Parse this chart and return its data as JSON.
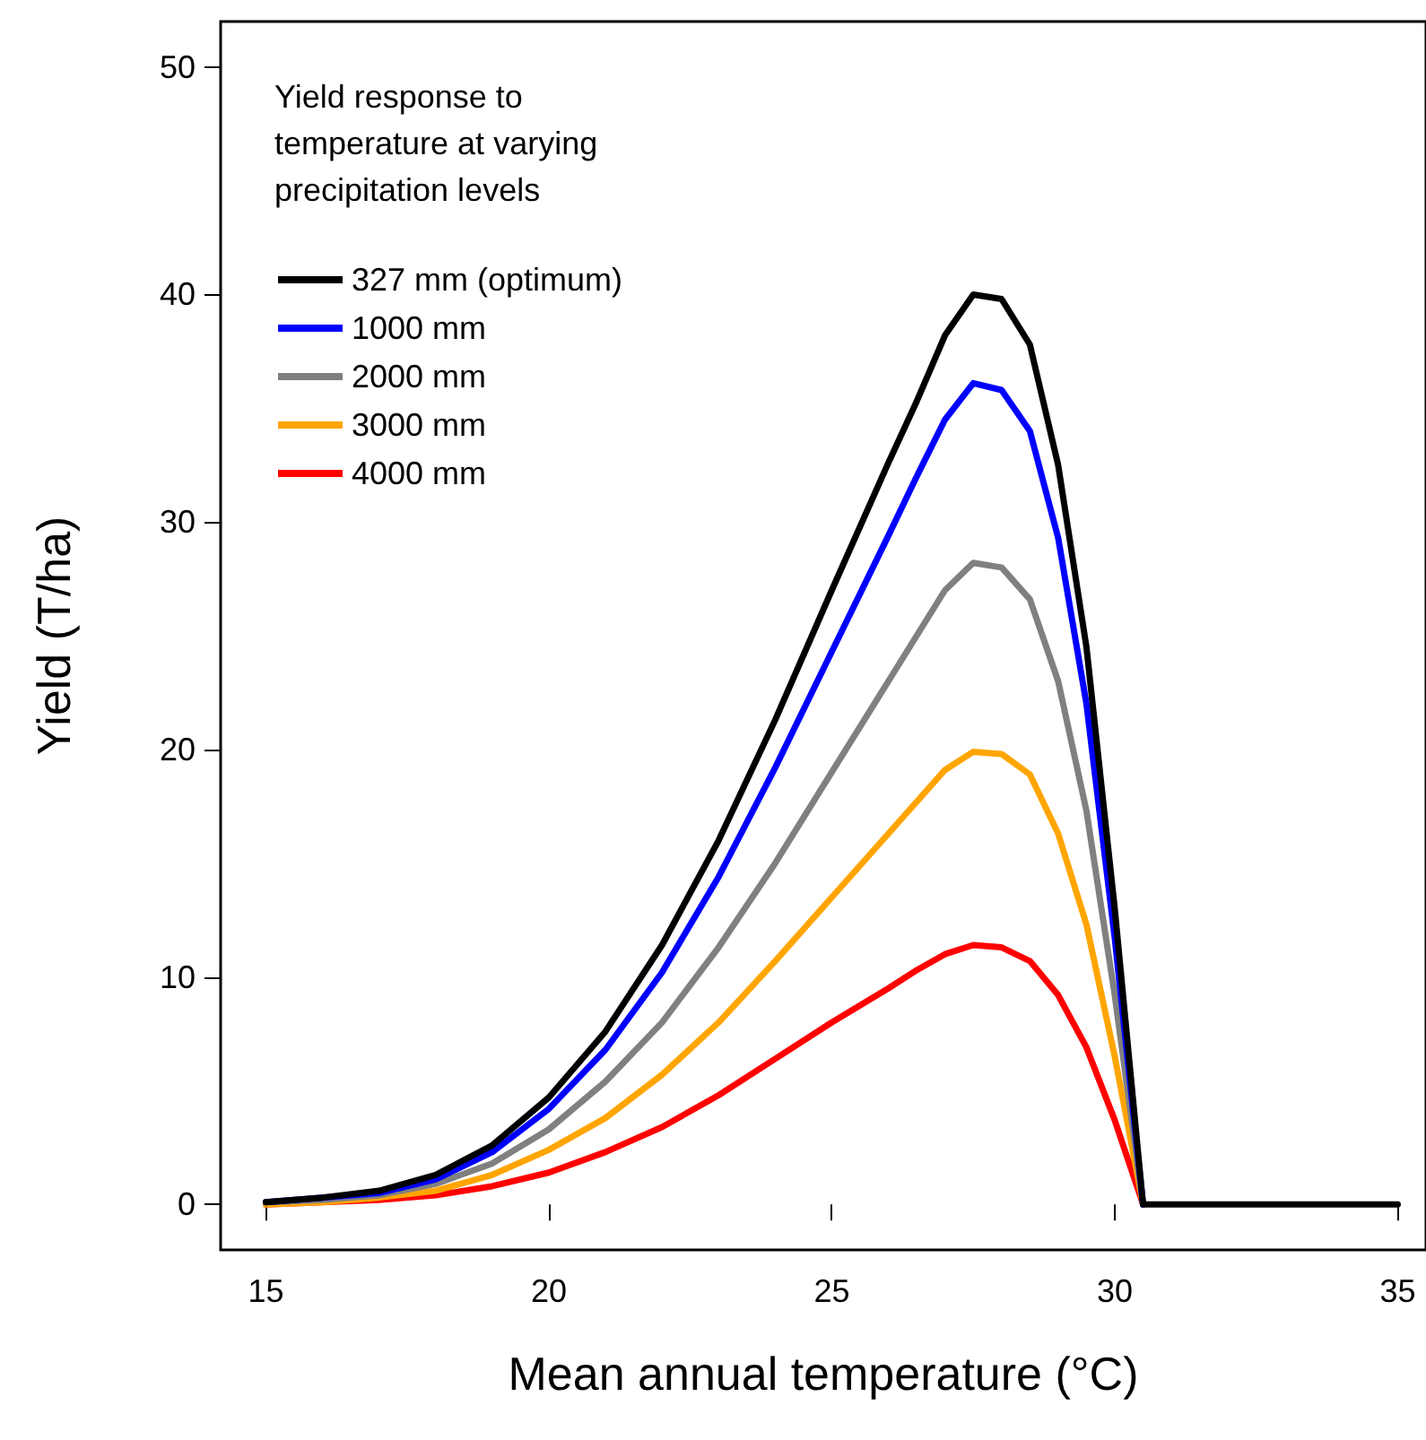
{
  "chart_data": {
    "type": "line",
    "xlabel": "Mean annual temperature (°C)",
    "ylabel": "Yield (T/ha)",
    "legend_title": "Yield response to temperature at varying precipitation levels",
    "x": [
      15,
      16,
      17,
      18,
      19,
      20,
      21,
      22,
      23,
      24,
      25,
      26,
      26.5,
      27,
      27.5,
      28,
      28.5,
      29,
      29.5,
      30,
      30.5,
      31,
      32,
      33,
      34,
      35
    ],
    "series": [
      {
        "name": "327 mm (optimum)",
        "color": "#000000",
        "values": [
          0.1,
          0.3,
          0.6,
          1.3,
          2.6,
          4.7,
          7.6,
          11.4,
          16,
          21.3,
          27,
          32.6,
          35.3,
          38.2,
          40,
          39.8,
          37.8,
          32.5,
          24.5,
          13,
          0,
          0,
          0,
          0,
          0,
          0
        ]
      },
      {
        "name": "1000 mm",
        "color": "#0000ff",
        "values": [
          0.1,
          0.3,
          0.5,
          1.1,
          2.3,
          4.2,
          6.8,
          10.2,
          14.4,
          19.2,
          24.3,
          29.4,
          32,
          34.5,
          36.1,
          35.8,
          34,
          29.3,
          22,
          11.7,
          0,
          null,
          null,
          null,
          null,
          null
        ]
      },
      {
        "name": "2000 mm",
        "color": "#808080",
        "values": [
          0.1,
          0.2,
          0.4,
          0.9,
          1.8,
          3.3,
          5.4,
          8,
          11.3,
          15,
          19,
          23,
          25,
          27,
          28.2,
          28,
          26.6,
          23,
          17.3,
          9.2,
          0,
          null,
          null,
          null,
          null,
          null
        ]
      },
      {
        "name": "3000 mm",
        "color": "#ffa500",
        "values": [
          0,
          0.1,
          0.3,
          0.6,
          1.3,
          2.4,
          3.8,
          5.7,
          8,
          10.7,
          13.5,
          16.3,
          17.7,
          19.1,
          19.9,
          19.8,
          18.9,
          16.3,
          12.3,
          6.5,
          0,
          null,
          null,
          null,
          null,
          null
        ]
      },
      {
        "name": "4000 mm",
        "color": "#ff0000",
        "values": [
          0,
          0.1,
          0.2,
          0.4,
          0.8,
          1.4,
          2.3,
          3.4,
          4.8,
          6.4,
          8,
          9.5,
          10.3,
          11,
          11.4,
          11.3,
          10.7,
          9.2,
          6.9,
          3.7,
          0,
          null,
          null,
          null,
          null,
          null
        ]
      }
    ],
    "xlim": [
      14.2,
      35.5
    ],
    "ylim": [
      -2,
      52
    ],
    "xticks": [
      15,
      20,
      25,
      30,
      35
    ],
    "yticks": [
      0,
      10,
      20,
      30,
      40,
      50
    ],
    "grid": false,
    "legend": "top left",
    "marker": "none",
    "line_style": "solid"
  }
}
